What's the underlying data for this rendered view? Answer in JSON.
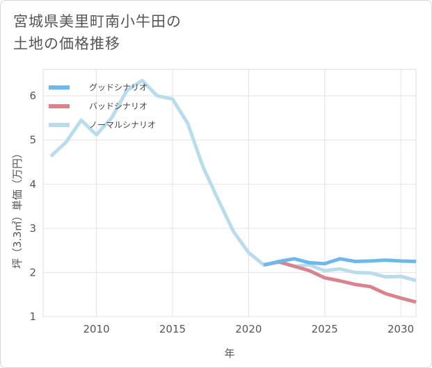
{
  "title_lines": [
    "宮城県美里町南小牛田の",
    "土地の価格推移"
  ],
  "chart_data": {
    "type": "line",
    "title": "宮城県美里町南小牛田の土地の価格推移",
    "xlabel": "年",
    "ylabel": "坪（3.3㎡）単価（万円）",
    "xlim": [
      2006.5,
      2031
    ],
    "ylim": [
      1,
      6.6
    ],
    "xticks": [
      2010,
      2015,
      2020,
      2025,
      2030
    ],
    "yticks": [
      1,
      2,
      3,
      4,
      5,
      6
    ],
    "legend_position": "top-left",
    "series": [
      {
        "name": "グッドシナリオ",
        "color": "#6cb8ec",
        "x": [
          2021,
          2022,
          2023,
          2024,
          2025,
          2026,
          2027,
          2028,
          2029,
          2030,
          2031
        ],
        "y": [
          2.17,
          2.25,
          2.31,
          2.22,
          2.2,
          2.31,
          2.25,
          2.26,
          2.28,
          2.26,
          2.25
        ]
      },
      {
        "name": "バッドシナリオ",
        "color": "#d9838d",
        "x": [
          2021,
          2022,
          2023,
          2024,
          2025,
          2026,
          2027,
          2028,
          2029,
          2030,
          2031
        ],
        "y": [
          2.17,
          2.24,
          2.14,
          2.04,
          1.88,
          1.81,
          1.73,
          1.68,
          1.52,
          1.42,
          1.33
        ]
      },
      {
        "name": "ノーマルシナリオ",
        "color": "#b8dcec",
        "x": [
          2007,
          2008,
          2009,
          2010,
          2011,
          2012,
          2013,
          2014,
          2015,
          2016,
          2017,
          2018,
          2019,
          2020,
          2021,
          2022,
          2023,
          2024,
          2025,
          2026,
          2027,
          2028,
          2029,
          2030,
          2031
        ],
        "y": [
          4.63,
          4.95,
          5.45,
          5.12,
          5.5,
          6.12,
          6.35,
          6.0,
          5.93,
          5.38,
          4.4,
          3.65,
          2.93,
          2.45,
          2.17,
          2.24,
          2.14,
          2.17,
          2.04,
          2.08,
          2.0,
          1.99,
          1.9,
          1.91,
          1.82
        ]
      }
    ]
  }
}
